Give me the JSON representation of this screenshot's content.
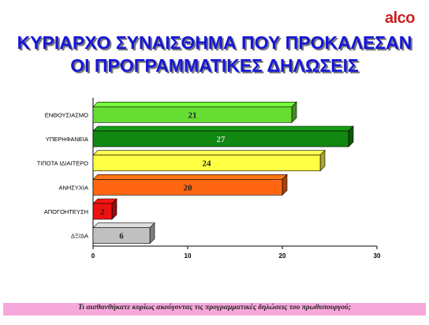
{
  "header": {
    "logo": "alco",
    "title_line1": "ΚΥΡΙΑΡΧΟ ΣΥΝΑΙΣΘΗΜΑ ΠΟΥ ΠΡΟΚΑΛΕΣΑΝ",
    "title_line2": "ΟΙ ΠΡΟΓΡΑΜΜΑΤΙΚΕΣ ΔΗΛΩΣΕΙΣ"
  },
  "footer": {
    "question": "Τι αισθανθήκατε κυρίως ακούγοντας τις προγραμματικές δηλώσεις του πρωθυπουργού;"
  },
  "chart_data": {
    "type": "bar",
    "orientation": "horizontal",
    "categories": [
      "ΕΝΘΟΥΣΙΑΣΜΟ",
      "ΥΠΕΡΗΦΑΝΕΙΑ",
      "ΤΙΠΟΤΑ ΙΔΙΑΙΤΕΡΟ",
      "ΑΝΗΣΥΧΙΑ",
      "ΑΠΟΓΟΗΤΕΥΣΗ",
      "ΔΞ/ΔΑ"
    ],
    "values": [
      21,
      27,
      24,
      20,
      2,
      6
    ],
    "colors": [
      "#66dd33",
      "#118811",
      "#ffff44",
      "#ff6611",
      "#ee1111",
      "#c0c0c0"
    ],
    "xlim": [
      0,
      30
    ],
    "xticks": [
      0,
      10,
      20,
      30
    ],
    "grid": false,
    "legend": "none",
    "bar_style": "3d"
  }
}
